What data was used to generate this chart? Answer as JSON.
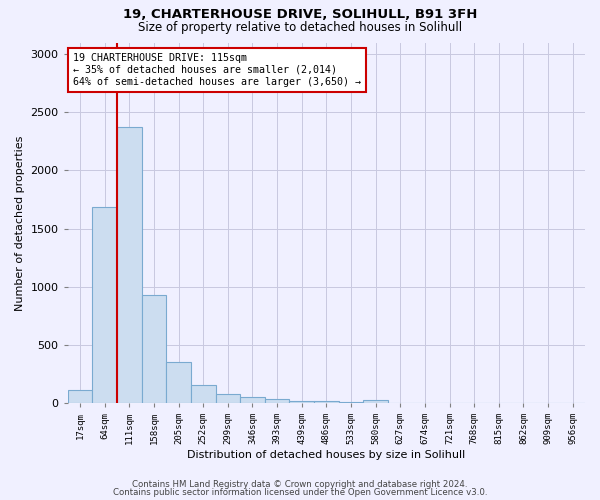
{
  "title1": "19, CHARTERHOUSE DRIVE, SOLIHULL, B91 3FH",
  "title2": "Size of property relative to detached houses in Solihull",
  "xlabel": "Distribution of detached houses by size in Solihull",
  "ylabel": "Number of detached properties",
  "bin_labels": [
    "17sqm",
    "64sqm",
    "111sqm",
    "158sqm",
    "205sqm",
    "252sqm",
    "299sqm",
    "346sqm",
    "393sqm",
    "439sqm",
    "486sqm",
    "533sqm",
    "580sqm",
    "627sqm",
    "674sqm",
    "721sqm",
    "768sqm",
    "815sqm",
    "862sqm",
    "909sqm",
    "956sqm"
  ],
  "bar_values": [
    110,
    1690,
    2370,
    930,
    350,
    155,
    80,
    55,
    35,
    20,
    15,
    10,
    30,
    0,
    0,
    0,
    0,
    0,
    0,
    0,
    0
  ],
  "bar_color": "#ccddf0",
  "bar_edge_color": "#7aaad0",
  "property_line_bin_index": 2,
  "annotation_line1": "19 CHARTERHOUSE DRIVE: 115sqm",
  "annotation_line2": "← 35% of detached houses are smaller (2,014)",
  "annotation_line3": "64% of semi-detached houses are larger (3,650) →",
  "annotation_box_color": "white",
  "annotation_border_color": "#cc0000",
  "vline_color": "#cc0000",
  "ylim": [
    0,
    3100
  ],
  "yticks": [
    0,
    500,
    1000,
    1500,
    2000,
    2500,
    3000
  ],
  "footer1": "Contains HM Land Registry data © Crown copyright and database right 2024.",
  "footer2": "Contains public sector information licensed under the Open Government Licence v3.0.",
  "bg_color": "#f0f0ff",
  "grid_color": "#c8c8e0"
}
